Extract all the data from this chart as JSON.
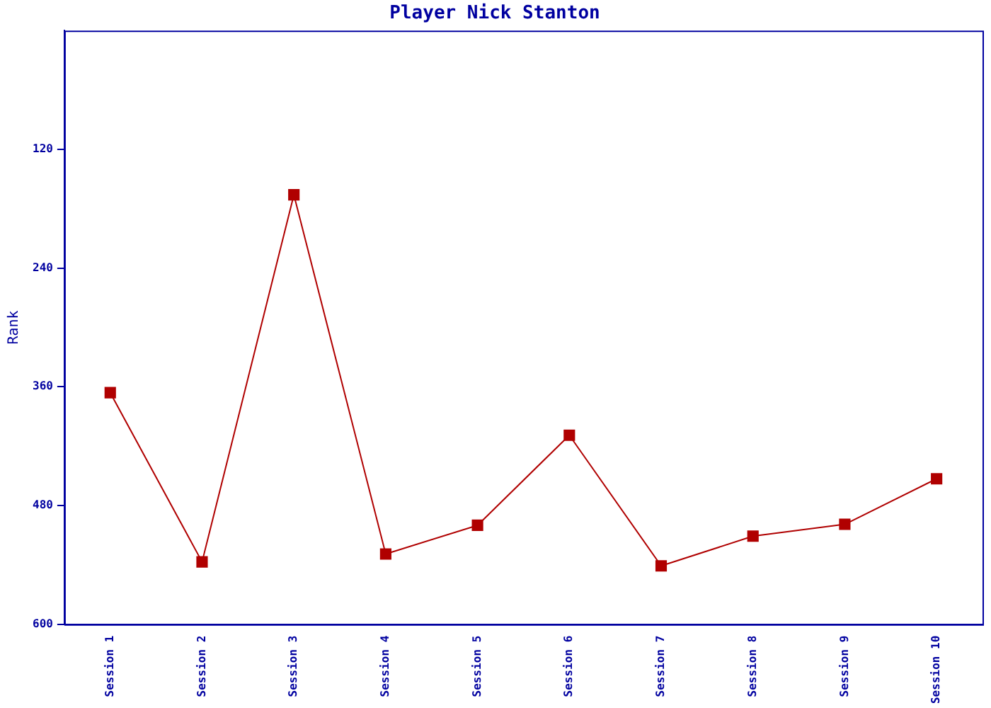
{
  "chart_data": {
    "type": "line",
    "title": "Player Nick Stanton",
    "ylabel": "Rank",
    "categories": [
      "Session 1",
      "Session 2",
      "Session 3",
      "Session 4",
      "Session 5",
      "Session 6",
      "Session 7",
      "Session 8",
      "Session 9",
      "Session 10"
    ],
    "series": [
      {
        "color": "#b00000",
        "values": [
          366,
          537,
          166,
          529,
          500,
          409,
          541,
          511,
          499,
          453
        ]
      }
    ],
    "ylim": [
      600,
      0
    ],
    "yticks": [
      120,
      240,
      360,
      480,
      600
    ],
    "grid": false,
    "legend": false,
    "marker": "square",
    "line_style": "solid"
  }
}
